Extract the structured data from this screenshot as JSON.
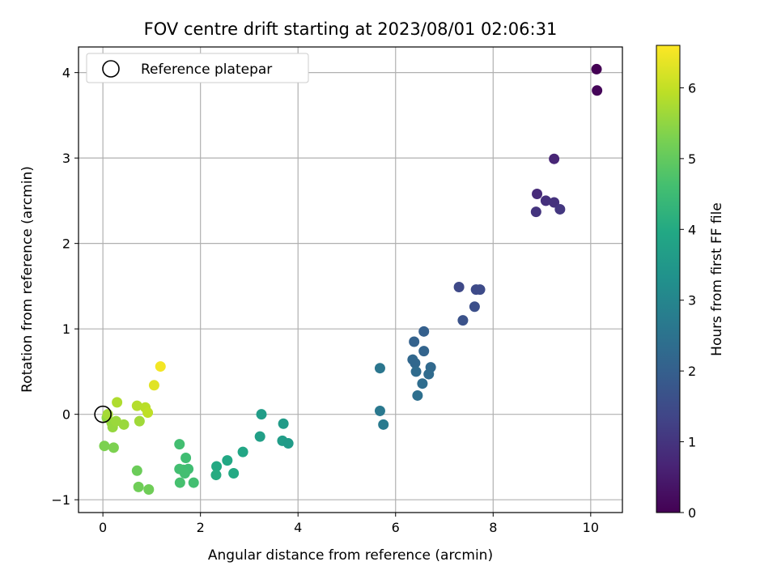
{
  "chart_data": {
    "type": "scatter",
    "title": "FOV centre drift starting at 2023/08/01 02:06:31",
    "xlabel": "Angular distance from reference (arcmin)",
    "ylabel": "Rotation from reference (arcmin)",
    "xlim": [
      -0.5,
      10.65
    ],
    "ylim": [
      -1.15,
      4.3
    ],
    "xticks": [
      0,
      2,
      4,
      6,
      8,
      10
    ],
    "yticks": [
      -1,
      0,
      1,
      2,
      3,
      4
    ],
    "grid": true,
    "legend": {
      "placement": "top-left",
      "entries": [
        "Reference platepar"
      ]
    },
    "reference_point": {
      "x": 0,
      "y": 0
    },
    "colorbar": {
      "label": "Hours from first FF file",
      "colormap": "viridis",
      "range": [
        0,
        6.6
      ],
      "ticks": [
        0,
        1,
        2,
        3,
        4,
        5,
        6
      ]
    },
    "points": [
      {
        "x": 10.12,
        "y": 4.04,
        "c": 0.0
      },
      {
        "x": 10.13,
        "y": 3.79,
        "c": 0.1
      },
      {
        "x": 9.25,
        "y": 2.99,
        "c": 0.7
      },
      {
        "x": 8.9,
        "y": 2.58,
        "c": 0.8
      },
      {
        "x": 9.08,
        "y": 2.5,
        "c": 0.9
      },
      {
        "x": 9.25,
        "y": 2.48,
        "c": 0.95
      },
      {
        "x": 8.88,
        "y": 2.37,
        "c": 1.0
      },
      {
        "x": 9.37,
        "y": 2.4,
        "c": 1.05
      },
      {
        "x": 7.3,
        "y": 1.49,
        "c": 1.45
      },
      {
        "x": 7.65,
        "y": 1.46,
        "c": 1.5
      },
      {
        "x": 7.73,
        "y": 1.46,
        "c": 1.5
      },
      {
        "x": 7.62,
        "y": 1.26,
        "c": 1.6
      },
      {
        "x": 7.38,
        "y": 1.1,
        "c": 1.65
      },
      {
        "x": 6.58,
        "y": 0.97,
        "c": 2.0
      },
      {
        "x": 6.38,
        "y": 0.85,
        "c": 2.05
      },
      {
        "x": 6.58,
        "y": 0.74,
        "c": 2.1
      },
      {
        "x": 6.35,
        "y": 0.64,
        "c": 2.2
      },
      {
        "x": 6.4,
        "y": 0.6,
        "c": 2.2
      },
      {
        "x": 6.72,
        "y": 0.55,
        "c": 2.25
      },
      {
        "x": 6.42,
        "y": 0.5,
        "c": 2.3
      },
      {
        "x": 6.68,
        "y": 0.47,
        "c": 2.3
      },
      {
        "x": 6.55,
        "y": 0.36,
        "c": 2.35
      },
      {
        "x": 6.45,
        "y": 0.22,
        "c": 2.4
      },
      {
        "x": 5.68,
        "y": 0.54,
        "c": 2.6
      },
      {
        "x": 5.68,
        "y": 0.04,
        "c": 2.65
      },
      {
        "x": 5.75,
        "y": -0.12,
        "c": 2.7
      },
      {
        "x": 3.25,
        "y": 0.0,
        "c": 3.65
      },
      {
        "x": 3.7,
        "y": -0.11,
        "c": 3.6
      },
      {
        "x": 3.22,
        "y": -0.26,
        "c": 3.7
      },
      {
        "x": 3.68,
        "y": -0.31,
        "c": 3.65
      },
      {
        "x": 3.8,
        "y": -0.34,
        "c": 3.6
      },
      {
        "x": 2.87,
        "y": -0.44,
        "c": 3.9
      },
      {
        "x": 2.55,
        "y": -0.54,
        "c": 3.95
      },
      {
        "x": 2.33,
        "y": -0.61,
        "c": 4.0
      },
      {
        "x": 2.32,
        "y": -0.71,
        "c": 4.05
      },
      {
        "x": 2.68,
        "y": -0.69,
        "c": 4.0
      },
      {
        "x": 1.57,
        "y": -0.35,
        "c": 4.6
      },
      {
        "x": 1.7,
        "y": -0.51,
        "c": 4.55
      },
      {
        "x": 1.57,
        "y": -0.64,
        "c": 4.6
      },
      {
        "x": 1.65,
        "y": -0.65,
        "c": 4.6
      },
      {
        "x": 1.75,
        "y": -0.64,
        "c": 4.55
      },
      {
        "x": 1.68,
        "y": -0.69,
        "c": 4.6
      },
      {
        "x": 1.58,
        "y": -0.8,
        "c": 4.65
      },
      {
        "x": 1.86,
        "y": -0.8,
        "c": 4.6
      },
      {
        "x": 0.7,
        "y": -0.66,
        "c": 5.1
      },
      {
        "x": 0.73,
        "y": -0.85,
        "c": 5.15
      },
      {
        "x": 0.94,
        "y": -0.88,
        "c": 5.15
      },
      {
        "x": 0.03,
        "y": -0.37,
        "c": 5.3
      },
      {
        "x": 0.22,
        "y": -0.39,
        "c": 5.3
      },
      {
        "x": 0.08,
        "y": -0.04,
        "c": 5.5
      },
      {
        "x": 0.18,
        "y": -0.1,
        "c": 5.55
      },
      {
        "x": 0.2,
        "y": -0.15,
        "c": 5.55
      },
      {
        "x": 0.27,
        "y": -0.08,
        "c": 5.6
      },
      {
        "x": 0.43,
        "y": -0.12,
        "c": 5.6
      },
      {
        "x": 0.75,
        "y": -0.08,
        "c": 5.65
      },
      {
        "x": 0.1,
        "y": 0.0,
        "c": 5.7
      },
      {
        "x": 0.29,
        "y": 0.14,
        "c": 5.8
      },
      {
        "x": 0.7,
        "y": 0.1,
        "c": 5.85
      },
      {
        "x": 0.87,
        "y": 0.08,
        "c": 5.9
      },
      {
        "x": 0.92,
        "y": 0.02,
        "c": 5.95
      },
      {
        "x": 1.05,
        "y": 0.34,
        "c": 6.3
      },
      {
        "x": 1.18,
        "y": 0.56,
        "c": 6.5
      }
    ]
  }
}
